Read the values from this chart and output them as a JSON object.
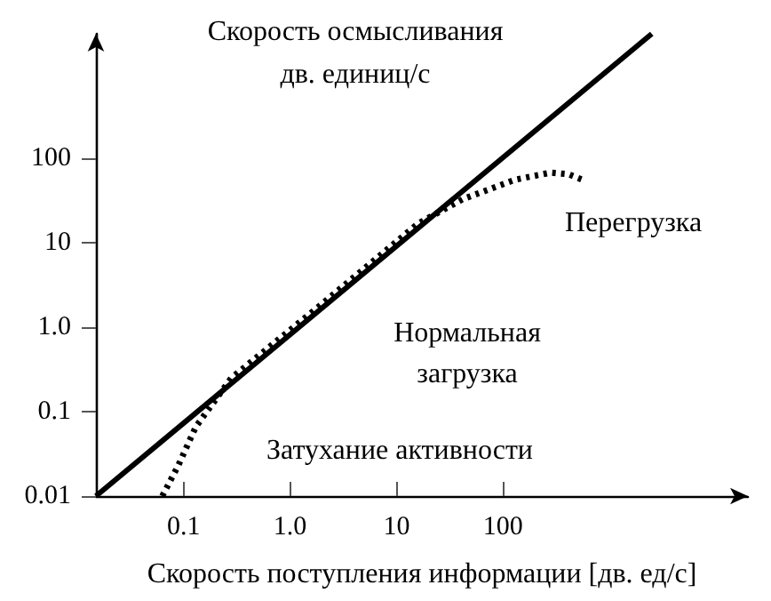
{
  "chart_data": {
    "type": "line",
    "ylabel": "Скорость осмысливания\nдв. единиц/с",
    "xlabel": "Скорость поступления информации [дв. ед/с]",
    "log": "xy",
    "xlim": [
      0.015,
      20000
    ],
    "ylim": [
      0.01,
      3000
    ],
    "xticks": [
      0.1,
      {
        "value": 1,
        "label": "1.0"
      },
      10,
      100
    ],
    "yticks": [
      0.01,
      0.1,
      {
        "value": 1,
        "label": "1.0"
      },
      10,
      100
    ],
    "grid": false,
    "marker": "none",
    "series": [
      {
        "color": "#000000",
        "line_style": "solid",
        "x": [
          0.015,
          2500
        ],
        "values": [
          0.01,
          3000
        ]
      },
      {
        "color": "#000000",
        "line_style": "dotted",
        "x": [
          0.063,
          0.089,
          0.13,
          0.28,
          1.9,
          16,
          42,
          130,
          280,
          415,
          600
        ],
        "values": [
          0.01,
          0.023,
          0.066,
          0.25,
          1.8,
          17,
          33,
          56,
          68,
          65,
          54
        ]
      }
    ],
    "annotations": [
      "Перегрузка",
      "Нормальная\nзагрузка",
      "Затухание активности"
    ]
  }
}
